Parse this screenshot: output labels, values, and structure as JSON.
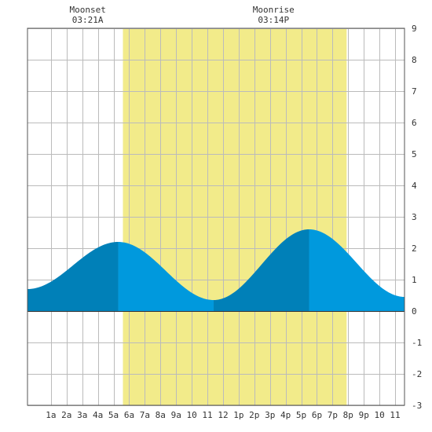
{
  "chart_data": {
    "type": "area",
    "title": "",
    "xlabel": "",
    "ylabel": "",
    "x_range_hours": [
      -0.5,
      23.6
    ],
    "ylim": [
      -3,
      9
    ],
    "y_ticks": [
      -3,
      -2,
      -1,
      0,
      1,
      2,
      3,
      4,
      5,
      6,
      7,
      8,
      9
    ],
    "x_ticks": [
      {
        "hour": 1,
        "label": "1a"
      },
      {
        "hour": 2,
        "label": "2a"
      },
      {
        "hour": 3,
        "label": "3a"
      },
      {
        "hour": 4,
        "label": "4a"
      },
      {
        "hour": 5,
        "label": "5a"
      },
      {
        "hour": 6,
        "label": "6a"
      },
      {
        "hour": 7,
        "label": "7a"
      },
      {
        "hour": 8,
        "label": "8a"
      },
      {
        "hour": 9,
        "label": "9a"
      },
      {
        "hour": 10,
        "label": "10"
      },
      {
        "hour": 11,
        "label": "11"
      },
      {
        "hour": 12,
        "label": "12"
      },
      {
        "hour": 13,
        "label": "1p"
      },
      {
        "hour": 14,
        "label": "2p"
      },
      {
        "hour": 15,
        "label": "3p"
      },
      {
        "hour": 16,
        "label": "4p"
      },
      {
        "hour": 17,
        "label": "5p"
      },
      {
        "hour": 18,
        "label": "6p"
      },
      {
        "hour": 19,
        "label": "7p"
      },
      {
        "hour": 20,
        "label": "8p"
      },
      {
        "hour": 21,
        "label": "9p"
      },
      {
        "hour": 22,
        "label": "10"
      },
      {
        "hour": 23,
        "label": "11"
      }
    ],
    "grid": true,
    "daylight_hours": [
      5.6,
      19.9
    ],
    "events": [
      {
        "name": "Moonset",
        "time": "03:21A",
        "hour": 3.35
      },
      {
        "name": "Moonrise",
        "time": "03:14P",
        "hour": 15.23
      }
    ],
    "tide_extremes": [
      {
        "type": "low",
        "hour": -0.5,
        "value": 0.7
      },
      {
        "type": "high",
        "hour": 5.3,
        "value": 2.2
      },
      {
        "type": "low",
        "hour": 11.4,
        "value": 0.35
      },
      {
        "type": "high",
        "hour": 17.5,
        "value": 2.6
      },
      {
        "type": "low",
        "hour": 23.6,
        "value": 0.45
      }
    ],
    "colors": {
      "daylight": "#f2eb8a",
      "tide_rising": "#0080b8",
      "tide_falling": "#0099dd",
      "grid": "#bbbbbb",
      "border": "#555555",
      "zero_line": "#333333"
    }
  }
}
